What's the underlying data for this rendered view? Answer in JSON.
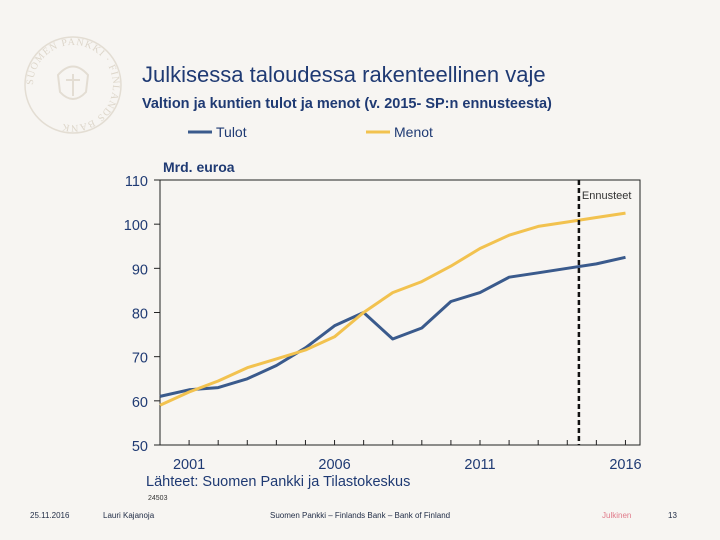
{
  "slide": {
    "title": "Julkisessa taloudessa rakenteellinen vaje",
    "subtitle": "Valtion ja kuntien tulot ja menot (v. 2015- SP:n ennusteesta)"
  },
  "colors": {
    "tulot": "#3a5a8c",
    "menot": "#f2c24f",
    "text": "#1f3a73",
    "forecast_line": "#111111"
  },
  "chart_data": {
    "type": "line",
    "ylabel": "Mrd. euroa",
    "ylim": [
      50,
      110
    ],
    "yticks": [
      50,
      60,
      70,
      80,
      90,
      100,
      110
    ],
    "xlim": [
      2000,
      2016.5
    ],
    "xticks": [
      2001,
      2006,
      2011,
      2016
    ],
    "forecast_start": 2014.4,
    "forecast_label": "Ennusteet",
    "source": "Lähteet: Suomen Pankki ja Tilastokeskus",
    "chart_code": "24503",
    "series": [
      {
        "name": "Tulot",
        "color": "#3a5a8c",
        "x": [
          2000,
          2001,
          2002,
          2003,
          2004,
          2005,
          2006,
          2007,
          2008,
          2009,
          2010,
          2011,
          2012,
          2013,
          2014,
          2015,
          2016
        ],
        "values": [
          61,
          62.5,
          63,
          65,
          68,
          72,
          77,
          80,
          74,
          76.5,
          82.5,
          84.5,
          88,
          89,
          90,
          91,
          92.5
        ]
      },
      {
        "name": "Menot",
        "color": "#f2c24f",
        "x": [
          2000,
          2001,
          2002,
          2003,
          2004,
          2005,
          2006,
          2007,
          2008,
          2009,
          2010,
          2011,
          2012,
          2013,
          2014,
          2015,
          2016
        ],
        "values": [
          59,
          62,
          64.5,
          67.5,
          69.5,
          71.5,
          74.5,
          80,
          84.5,
          87,
          90.5,
          94.5,
          97.5,
          99.5,
          100.5,
          101.5,
          102.5
        ]
      }
    ]
  },
  "footer": {
    "date": "25.11.2016",
    "author": "Lauri Kajanoja",
    "org": "Suomen Pankki – Finlands Bank – Bank of Finland",
    "classification": "Julkinen",
    "page": "13"
  },
  "logo": {
    "text": "SUOMEN PANKKI · FINLANDS BANK"
  }
}
